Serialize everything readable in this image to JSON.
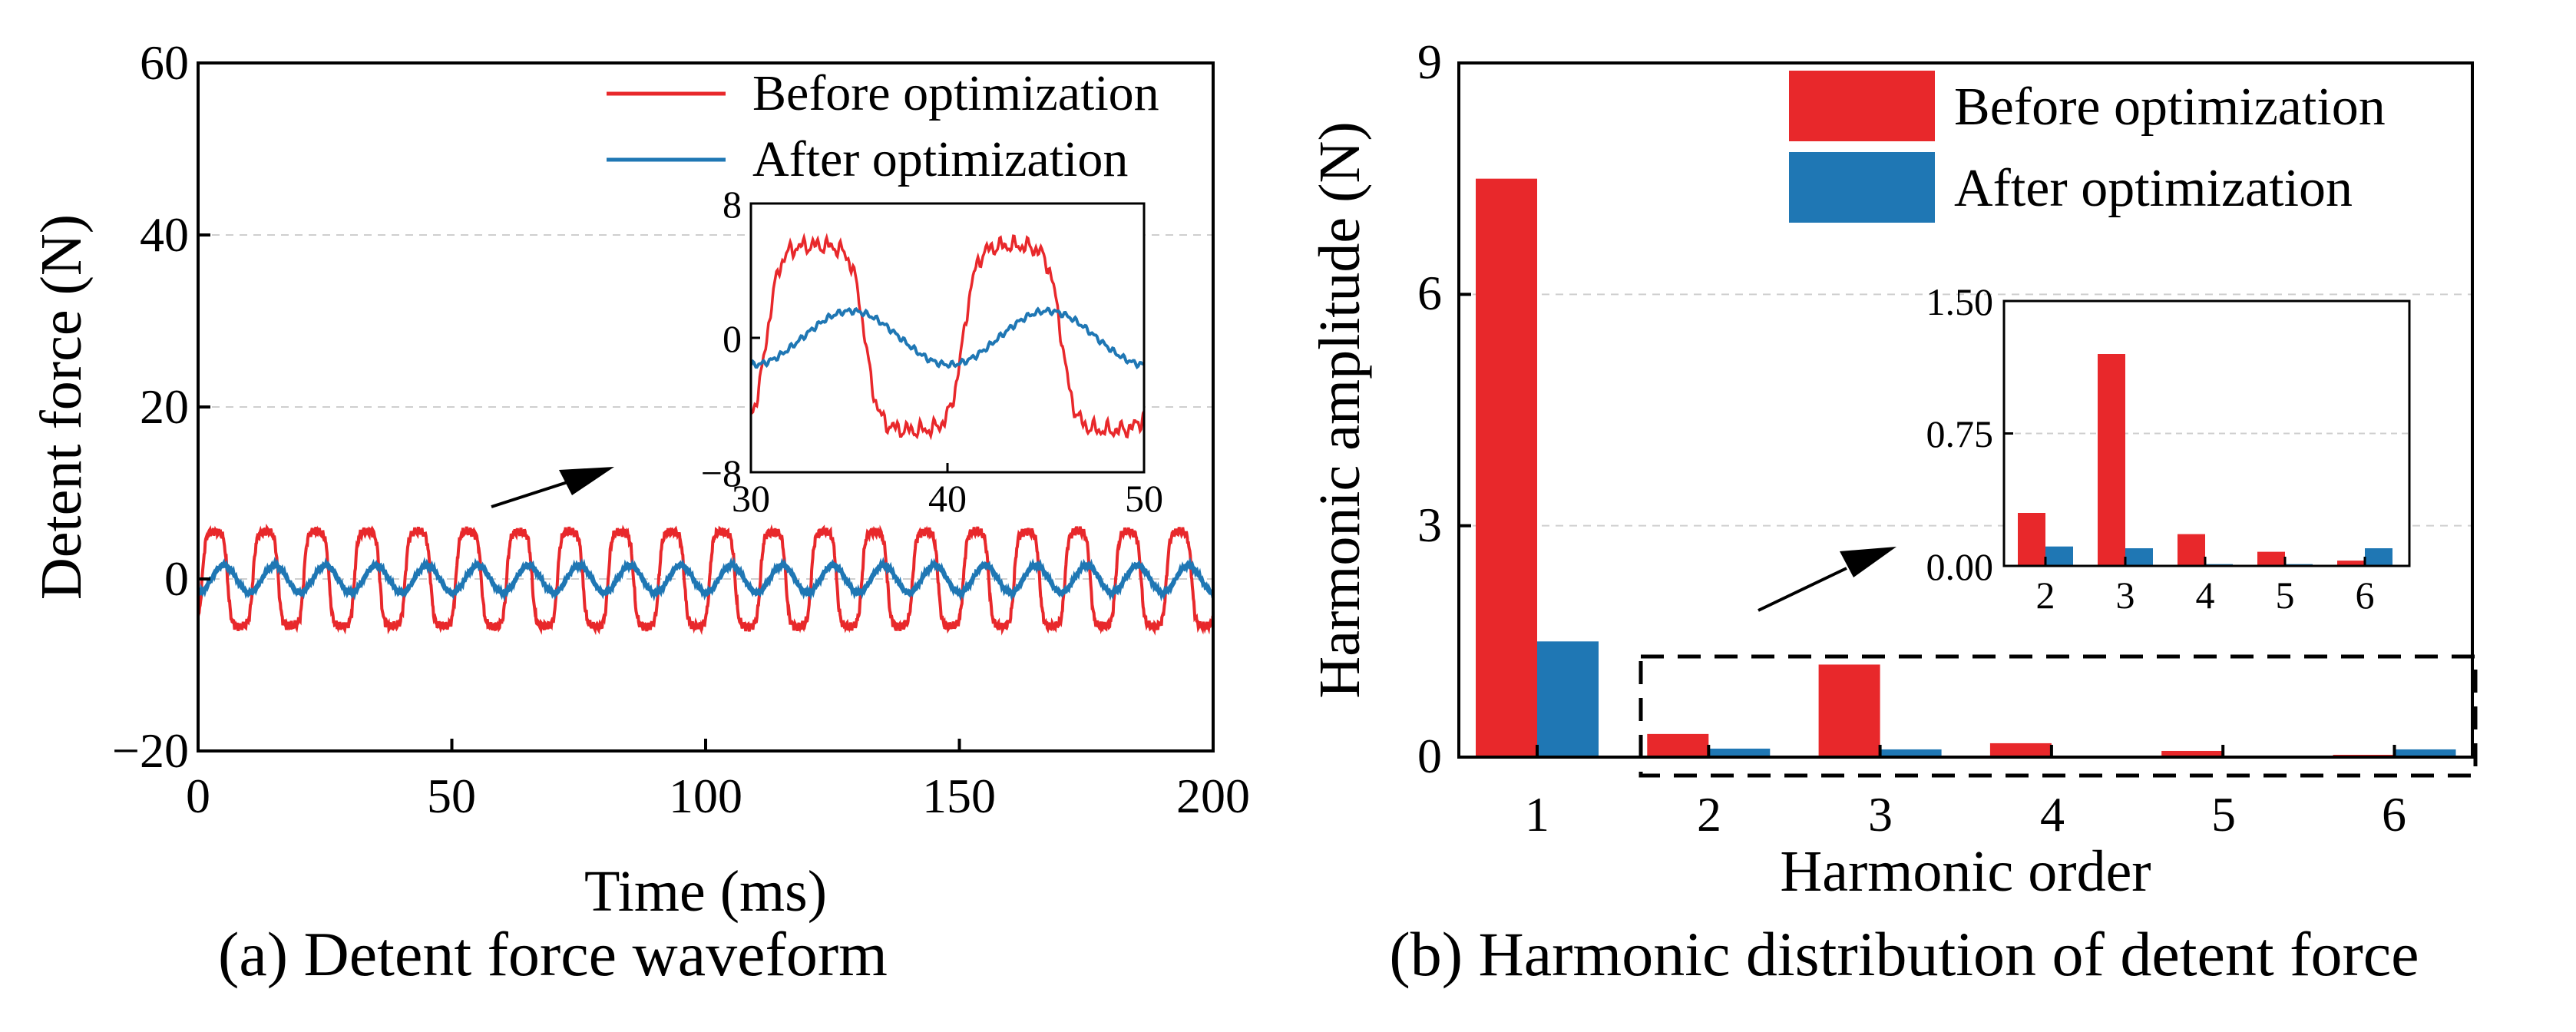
{
  "colors": {
    "before": "#e8282b",
    "after": "#1f77b4",
    "grid": "#cfcfcf"
  },
  "chart_data": [
    {
      "id": "a",
      "type": "line",
      "caption": "(a) Detent force waveform",
      "xlabel": "Time (ms)",
      "ylabel": "Detent force (N)",
      "xlim": [
        0,
        200
      ],
      "ylim": [
        -20,
        60
      ],
      "xticks": [
        "0",
        "50",
        "100",
        "150",
        "200"
      ],
      "yticks": [
        "−20",
        "0",
        "20",
        "40",
        "60"
      ],
      "grid": "horizontal dashed",
      "legend_position": "top-right",
      "period_ms": 10,
      "series": [
        {
          "name": "Before optimization",
          "color_key": "before",
          "amplitude": 5.5,
          "waveform": "trapezoidal"
        },
        {
          "name": "After optimization",
          "color_key": "after",
          "amplitude": 1.6,
          "waveform": "sinusoidal"
        }
      ],
      "inset": {
        "xlim": [
          30,
          50
        ],
        "ylim": [
          -8,
          8
        ],
        "xticks": [
          "30",
          "40",
          "50"
        ],
        "yticks": [
          "−8",
          "0",
          "8"
        ]
      }
    },
    {
      "id": "b",
      "type": "bar",
      "caption": "(b) Harmonic distribution of detent force",
      "xlabel": "Harmonic order",
      "ylabel": "Harmonic amplitude (N)",
      "categories": [
        "1",
        "2",
        "3",
        "4",
        "5",
        "6"
      ],
      "ylim": [
        0,
        9
      ],
      "yticks": [
        "0",
        "3",
        "6",
        "9"
      ],
      "grid": "horizontal dashed",
      "legend_position": "top-right",
      "series": [
        {
          "name": "Before optimization",
          "color_key": "before",
          "values": [
            7.5,
            0.3,
            1.2,
            0.18,
            0.08,
            0.03
          ]
        },
        {
          "name": "After optimization",
          "color_key": "after",
          "values": [
            1.5,
            0.11,
            0.1,
            0.01,
            0.01,
            0.1
          ]
        }
      ],
      "inset": {
        "categories": [
          "2",
          "3",
          "4",
          "5",
          "6"
        ],
        "ylim": [
          0,
          1.5
        ],
        "yticks": [
          "0.00",
          "0.75",
          "1.50"
        ]
      }
    }
  ]
}
